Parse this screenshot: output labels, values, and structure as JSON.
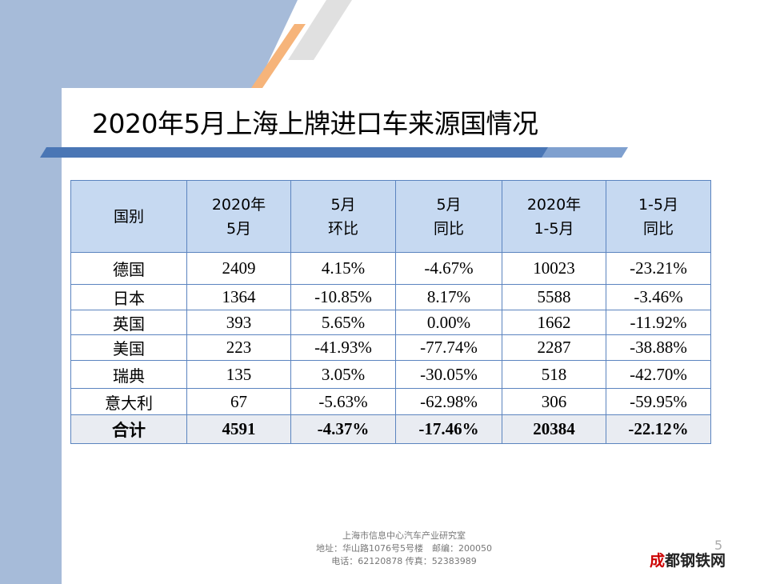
{
  "title": "2020年5月上海上牌进口车来源国情况",
  "table": {
    "headers": [
      [
        "国别",
        ""
      ],
      [
        "2020年",
        "5月"
      ],
      [
        "5月",
        "环比"
      ],
      [
        "5月",
        "同比"
      ],
      [
        "2020年",
        "1-5月"
      ],
      [
        "1-5月",
        "同比"
      ]
    ],
    "rows": [
      [
        "德国",
        "2409",
        "4.15%",
        "-4.67%",
        "10023",
        "-23.21%"
      ],
      [
        "日本",
        "1364",
        "-10.85%",
        "8.17%",
        "5588",
        "-3.46%"
      ],
      [
        "英国",
        "393",
        "5.65%",
        "0.00%",
        "1662",
        "-11.92%"
      ],
      [
        "美国",
        "223",
        "-41.93%",
        "-77.74%",
        "2287",
        "-38.88%"
      ],
      [
        "瑞典",
        "135",
        "3.05%",
        "-30.05%",
        "518",
        "-42.70%"
      ],
      [
        "意大利",
        "67",
        "-5.63%",
        "-62.98%",
        "306",
        "-59.95%"
      ]
    ],
    "total": [
      "合计",
      "4591",
      "-4.37%",
      "-17.46%",
      "20384",
      "-22.12%"
    ]
  },
  "footer": {
    "line1": "上海市信息中心汽车产业研究室",
    "line2": "地址：华山路1076号5号楼　邮编：200050",
    "line3": "电话：62120878  传真：52383989"
  },
  "page_number": "5",
  "watermark": "成都钢铁网 CDGTW.COM"
}
